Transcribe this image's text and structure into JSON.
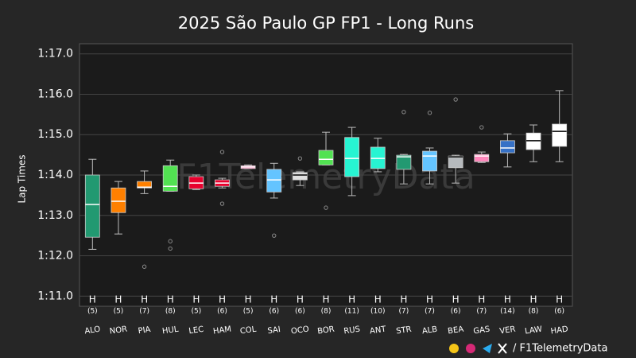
{
  "chart_data": {
    "type": "box",
    "title": "2025 São Paulo GP FP1 - Long Runs",
    "y_label": "Lap Times",
    "watermark": "F1TelemetryData",
    "footer": "/ F1TelemetryData",
    "categories": [
      "ALO",
      "NOR",
      "PIA",
      "HUL",
      "LEC",
      "HAM",
      "COL",
      "SAI",
      "OCO",
      "BOR",
      "RUS",
      "ANT",
      "STR",
      "ALB",
      "BEA",
      "GAS",
      "VER",
      "LAW",
      "HAD"
    ],
    "colors": [
      "#229971",
      "#ff8000",
      "#ff8000",
      "#52e252",
      "#e8002d",
      "#e8002d",
      "#ff87bc",
      "#64c4ff",
      "#e0e0e0",
      "#52e252",
      "#27f4d2",
      "#27f4d2",
      "#229971",
      "#64c4ff",
      "#b6babd",
      "#ff87bc",
      "#3671c6",
      "#ffffff",
      "#ffffff"
    ],
    "compounds": [
      "H",
      "H",
      "H",
      "H",
      "H",
      "H",
      "H",
      "H",
      "H",
      "H",
      "H",
      "H",
      "H",
      "H",
      "H",
      "H",
      "H",
      "H",
      "H"
    ],
    "lap_counts": [
      "(5)",
      "(5)",
      "(7)",
      "(8)",
      "(5)",
      "(6)",
      "(5)",
      "(6)",
      "(6)",
      "(8)",
      "(11)",
      "(10)",
      "(7)",
      "(7)",
      "(6)",
      "(7)",
      "(14)",
      "(8)",
      "(6)"
    ],
    "boxes": [
      {
        "whisker_low": 72.16,
        "q1": 72.46,
        "median": 73.27,
        "q3": 74.0,
        "whisker_high": 74.39,
        "outliers": []
      },
      {
        "whisker_low": 72.54,
        "q1": 73.07,
        "median": 73.35,
        "q3": 73.68,
        "whisker_high": 73.84,
        "outliers": []
      },
      {
        "whisker_low": 73.54,
        "q1": 73.68,
        "median": 73.7,
        "q3": 73.84,
        "whisker_high": 74.1,
        "outliers": [
          71.73
        ]
      },
      {
        "whisker_low": 73.6,
        "q1": 73.6,
        "median": 73.72,
        "q3": 74.23,
        "whisker_high": 74.37,
        "outliers": [
          72.36,
          72.18
        ]
      },
      {
        "whisker_low": 73.64,
        "q1": 73.66,
        "median": 73.8,
        "q3": 73.96,
        "whisker_high": 74.0,
        "outliers": []
      },
      {
        "whisker_low": 73.68,
        "q1": 73.72,
        "median": 73.8,
        "q3": 73.88,
        "whisker_high": 73.92,
        "outliers": [
          74.57,
          73.29
        ]
      },
      {
        "whisker_low": 74.16,
        "q1": 74.16,
        "median": 74.2,
        "q3": 74.23,
        "whisker_high": 74.25,
        "outliers": []
      },
      {
        "whisker_low": 73.43,
        "q1": 73.58,
        "median": 73.88,
        "q3": 74.14,
        "whisker_high": 74.29,
        "outliers": [
          72.5
        ]
      },
      {
        "whisker_low": 73.74,
        "q1": 73.88,
        "median": 74.0,
        "q3": 74.06,
        "whisker_high": 74.08,
        "outliers": [
          74.41
        ]
      },
      {
        "whisker_low": 74.25,
        "q1": 74.25,
        "median": 74.39,
        "q3": 74.61,
        "whisker_high": 75.06,
        "outliers": [
          73.19
        ]
      },
      {
        "whisker_low": 73.49,
        "q1": 73.96,
        "median": 74.41,
        "q3": 74.93,
        "whisker_high": 75.18,
        "outliers": []
      },
      {
        "whisker_low": 74.08,
        "q1": 74.16,
        "median": 74.41,
        "q3": 74.69,
        "whisker_high": 74.91,
        "outliers": []
      },
      {
        "whisker_low": 73.78,
        "q1": 74.14,
        "median": 74.45,
        "q3": 74.49,
        "whisker_high": 74.51,
        "outliers": [
          75.56
        ]
      },
      {
        "whisker_low": 73.78,
        "q1": 74.1,
        "median": 74.47,
        "q3": 74.59,
        "whisker_high": 74.67,
        "outliers": [
          75.54
        ]
      },
      {
        "whisker_low": 73.8,
        "q1": 74.18,
        "median": 74.45,
        "q3": 74.47,
        "whisker_high": 74.49,
        "outliers": [
          75.87
        ]
      },
      {
        "whisker_low": 74.31,
        "q1": 74.33,
        "median": 74.47,
        "q3": 74.51,
        "whisker_high": 74.57,
        "outliers": [
          75.18
        ]
      },
      {
        "whisker_low": 74.2,
        "q1": 74.55,
        "median": 74.67,
        "q3": 74.85,
        "whisker_high": 75.02,
        "outliers": []
      },
      {
        "whisker_low": 74.33,
        "q1": 74.63,
        "median": 74.85,
        "q3": 75.04,
        "whisker_high": 75.24,
        "outliers": []
      },
      {
        "whisker_low": 74.33,
        "q1": 74.71,
        "median": 75.08,
        "q3": 75.26,
        "whisker_high": 76.09,
        "outliers": []
      }
    ],
    "ylim": [
      70.75,
      77.25
    ],
    "yticks": [
      {
        "value": 71,
        "label": "1:11.0"
      },
      {
        "value": 72,
        "label": "1:12.0"
      },
      {
        "value": 73,
        "label": "1:13.0"
      },
      {
        "value": 74,
        "label": "1:14.0"
      },
      {
        "value": 75,
        "label": "1:15.0"
      },
      {
        "value": 76,
        "label": "1:16.0"
      },
      {
        "value": 77,
        "label": "1:17.0"
      }
    ],
    "grid": true
  }
}
